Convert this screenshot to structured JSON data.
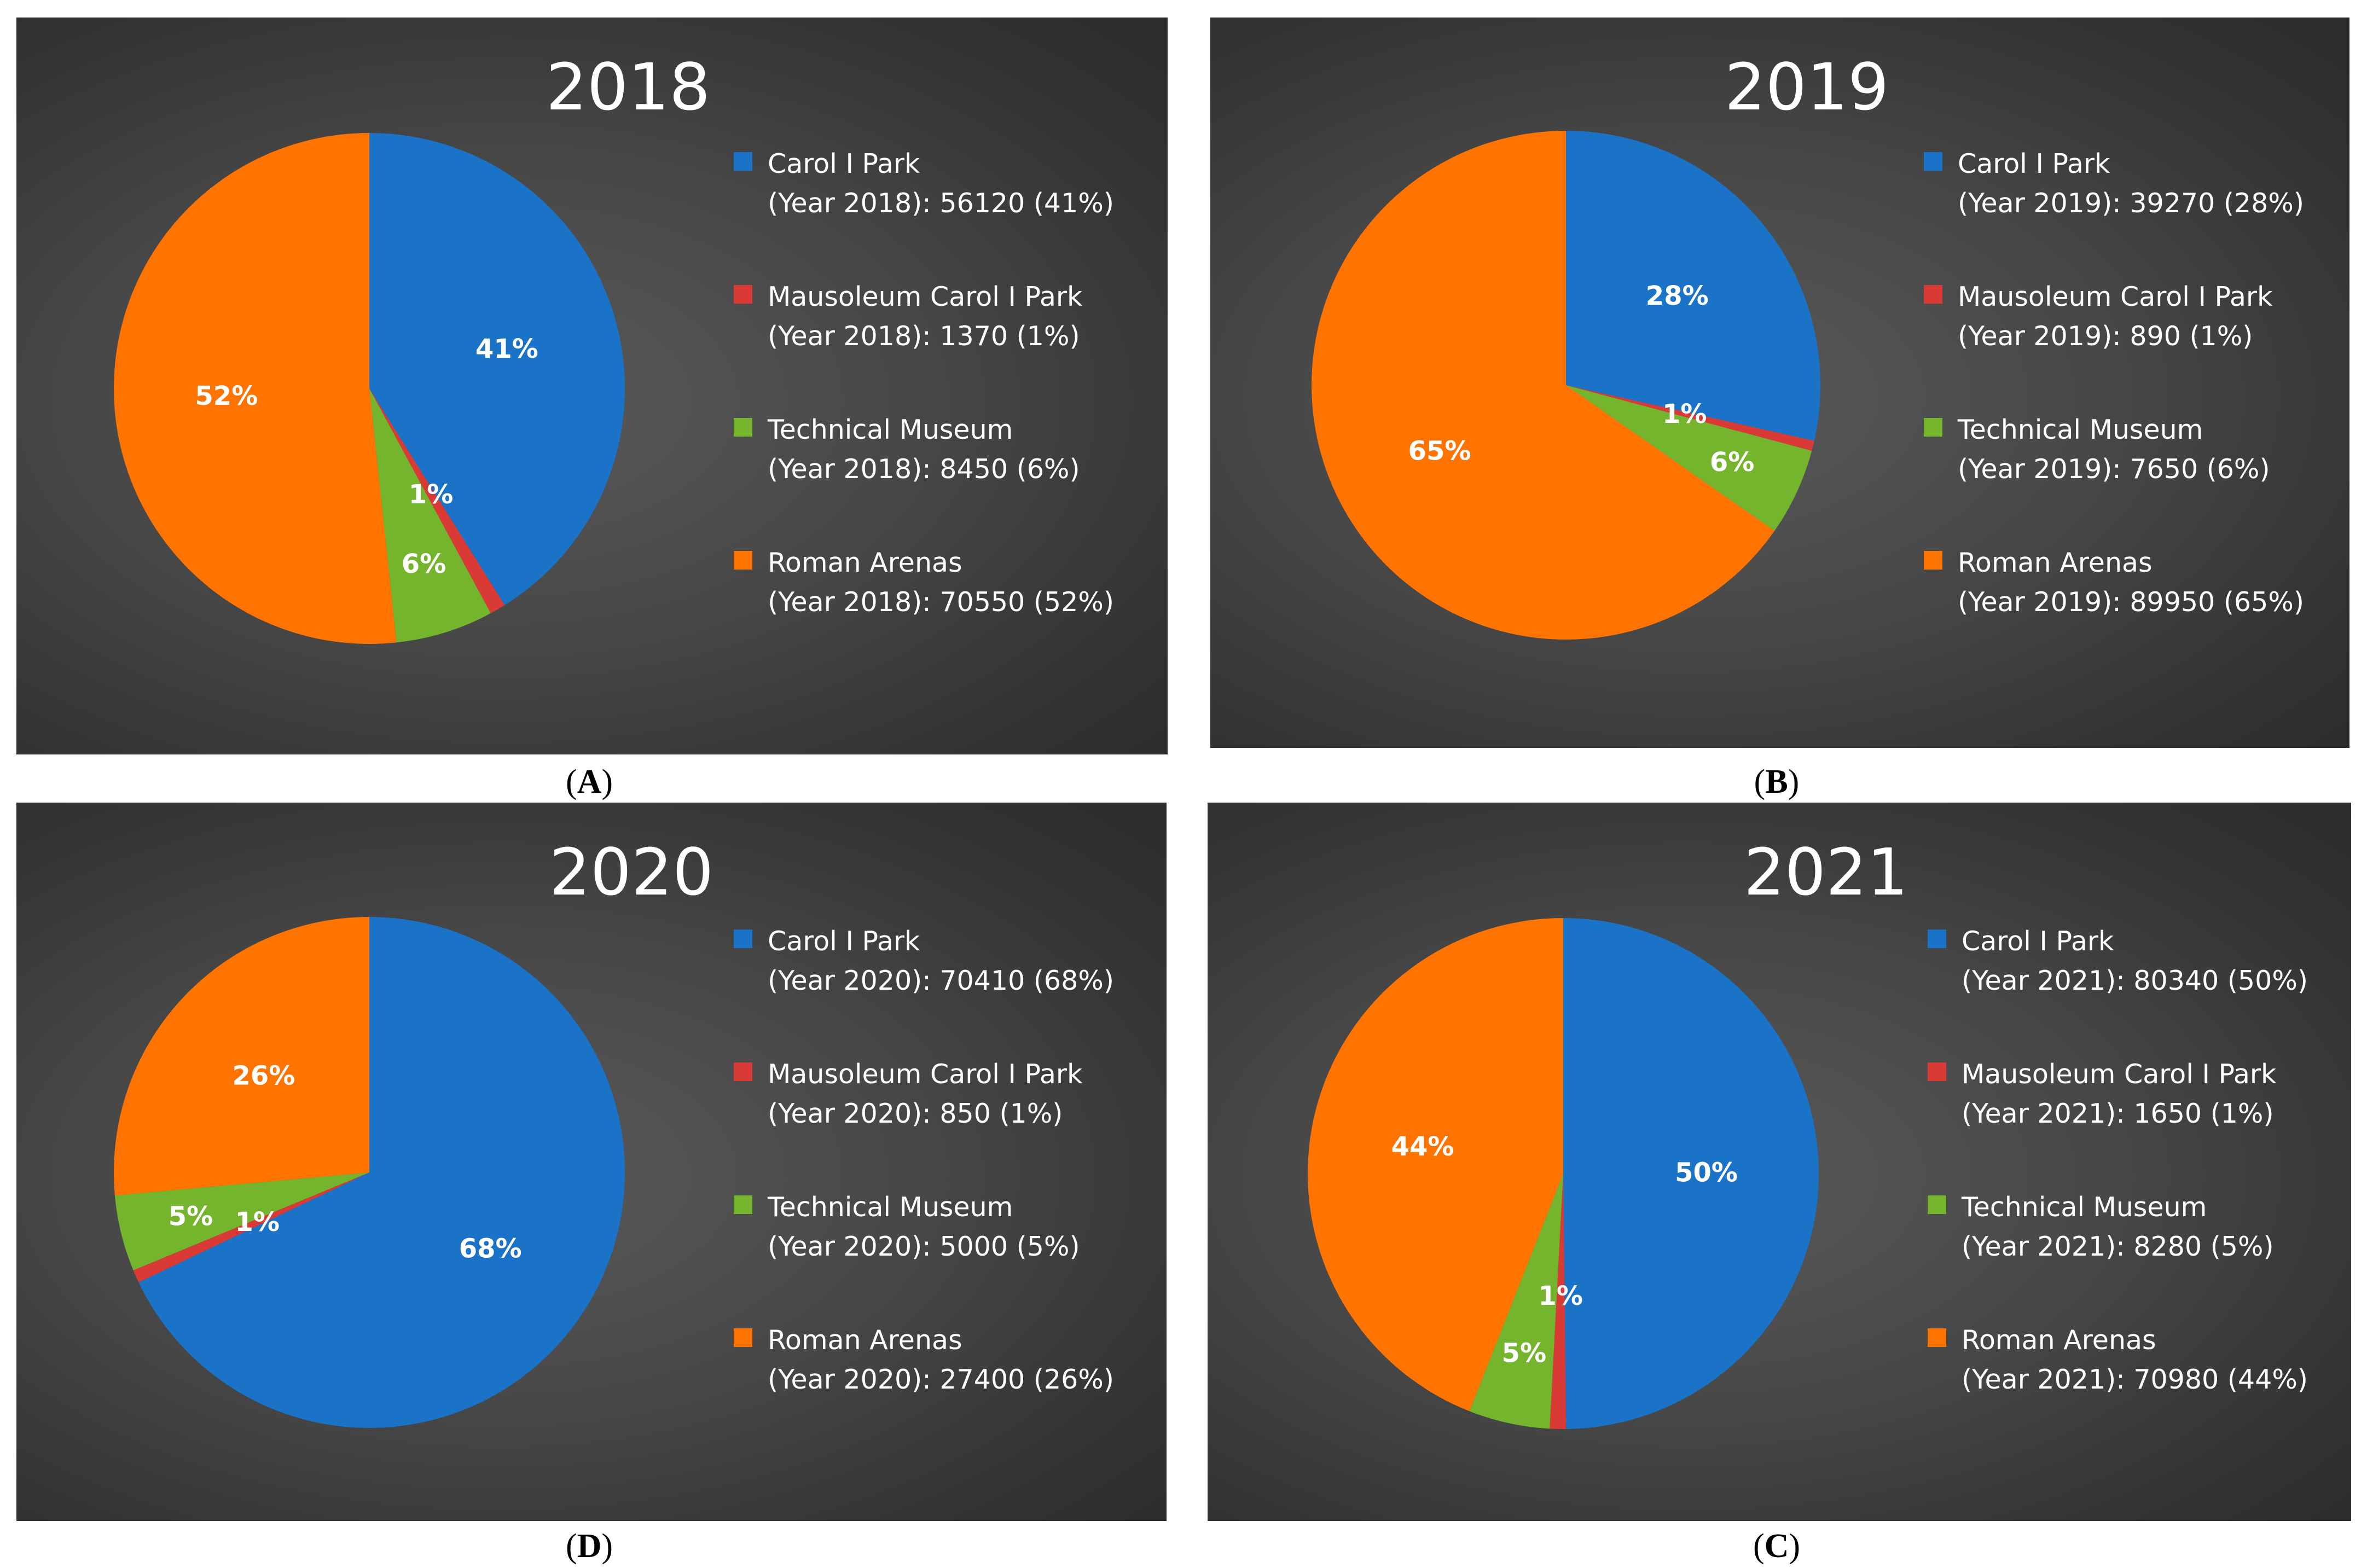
{
  "colors": {
    "Carol I Park": "#1a73c6",
    "Mausoleum Carol I Park": "#d93a36",
    "Technical Museum": "#74b52d",
    "Roman Arenas": "#ff7300"
  },
  "chart_data": [
    {
      "panel": "A",
      "type": "pie",
      "title": "2018",
      "categories": [
        "Carol I Park",
        "Mausoleum Carol I Park",
        "Technical Museum",
        "Roman Arenas"
      ],
      "values": [
        56120,
        1370,
        8450,
        70550
      ],
      "percent_labels": [
        "41%",
        "1%",
        "6%",
        "52%"
      ],
      "legend": [
        {
          "name": "Carol I Park",
          "value": "(Year 2018): 56120 (41%)"
        },
        {
          "name": "Mausoleum Carol I Park",
          "value": "(Year 2018): 1370 (1%)"
        },
        {
          "name": "Technical Museum",
          "value": "(Year 2018): 8450 (6%)"
        },
        {
          "name": "Roman Arenas",
          "value": "(Year 2018): 70550 (52%)"
        }
      ]
    },
    {
      "panel": "B",
      "type": "pie",
      "title": "2019",
      "categories": [
        "Carol I Park",
        "Mausoleum Carol I Park",
        "Technical Museum",
        "Roman Arenas"
      ],
      "values": [
        39270,
        890,
        7650,
        89950
      ],
      "percent_labels": [
        "28%",
        "1%",
        "6%",
        "65%"
      ],
      "legend": [
        {
          "name": "Carol I Park",
          "value": "(Year 2019): 39270 (28%)"
        },
        {
          "name": "Mausoleum Carol I Park",
          "value": "(Year 2019): 890 (1%)"
        },
        {
          "name": "Technical Museum",
          "value": "(Year 2019): 7650 (6%)"
        },
        {
          "name": "Roman Arenas",
          "value": "(Year 2019): 89950 (65%)"
        }
      ]
    },
    {
      "panel": "D",
      "type": "pie",
      "title": "2020",
      "categories": [
        "Carol I Park",
        "Mausoleum Carol I Park",
        "Technical Museum",
        "Roman Arenas"
      ],
      "values": [
        70410,
        850,
        5000,
        27400
      ],
      "percent_labels": [
        "68%",
        "1%",
        "5%",
        "26%"
      ],
      "legend": [
        {
          "name": "Carol I Park",
          "value": "(Year 2020): 70410 (68%)"
        },
        {
          "name": "Mausoleum Carol I Park",
          "value": "(Year 2020): 850 (1%)"
        },
        {
          "name": "Technical Museum",
          "value": "(Year 2020): 5000 (5%)"
        },
        {
          "name": "Roman Arenas",
          "value": "(Year 2020): 27400 (26%)"
        }
      ]
    },
    {
      "panel": "C",
      "type": "pie",
      "title": "2021",
      "categories": [
        "Carol I Park",
        "Mausoleum Carol I Park",
        "Technical Museum",
        "Roman Arenas"
      ],
      "values": [
        80340,
        1650,
        8280,
        70980
      ],
      "percent_labels": [
        "50%",
        "1%",
        "5%",
        "44%"
      ],
      "legend": [
        {
          "name": "Carol I Park",
          "value": "(Year 2021): 80340 (50%)"
        },
        {
          "name": "Mausoleum Carol I Park",
          "value": "(Year 2021): 1650 (1%)"
        },
        {
          "name": "Technical Museum",
          "value": "(Year 2021): 8280 (5%)"
        },
        {
          "name": "Roman Arenas",
          "value": "(Year 2021): 70980 (44%)"
        }
      ]
    }
  ],
  "captions": {
    "A": "A",
    "B": "B",
    "D": "D",
    "C": "C"
  }
}
